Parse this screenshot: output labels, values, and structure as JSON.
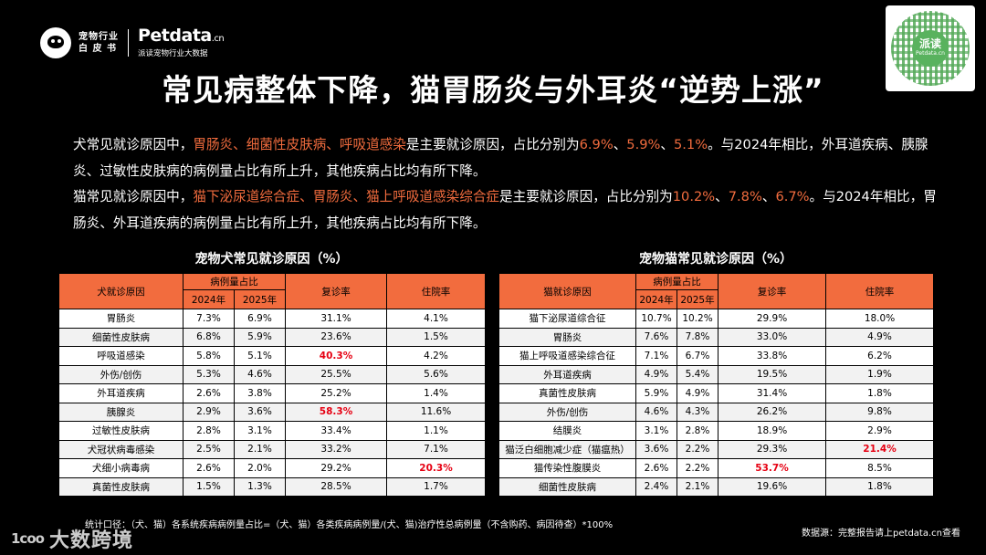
{
  "header": {
    "logo_line1": "宠物行业",
    "logo_line2": "白 皮 书",
    "brand": "Petdata",
    "brand_suffix": ".cn",
    "brand_sub": "派读宠物行业大数据"
  },
  "qr": {
    "center_text": "派读",
    "center_sub": "Petdata.cn"
  },
  "title": "常见病整体下降，猫胃肠炎与外耳炎“逆势上涨”",
  "para1": {
    "t1": "犬常见就诊原因中，",
    "h1": "胃肠炎、细菌性皮肤病、呼吸道感染",
    "t2": "是主要就诊原因，占比分别为",
    "h2": "6.9%",
    "t3": "、",
    "h3": "5.9%",
    "t4": "、",
    "h4": "5.1%",
    "t5": "。与2024年相比，外耳道疾病、胰腺炎、过敏性皮肤病的病例量占比有所上升，其他疾病占比均有所下降。"
  },
  "para2": {
    "t1": "猫常见就诊原因中，",
    "h1": "猫下泌尿道综合症、胃肠炎、猫上呼吸道感染综合症",
    "t2": "是主要就诊原因，占比分别为",
    "h2": "10.2%",
    "t3": "、",
    "h3": "7.8%",
    "t4": "、",
    "h4": "6.7%",
    "t5": "。与2024年相比，胃肠炎、外耳道疾病的病例量占比有所上升，其他疾病占比均有所下降。"
  },
  "dog_table": {
    "title": "宠物犬常见就诊原因（%）",
    "headers": {
      "reason": "犬就诊原因",
      "share": "病例量占比",
      "y2024": "2024年",
      "y2025": "2025年",
      "revisit": "复诊率",
      "hospital": "住院率"
    },
    "rows": [
      {
        "name": "胃肠炎",
        "y2024": "7.3%",
        "y2025": "6.9%",
        "revisit": "31.1%",
        "hospital": "4.1%",
        "red": ""
      },
      {
        "name": "细菌性皮肤病",
        "y2024": "6.8%",
        "y2025": "5.9%",
        "revisit": "23.6%",
        "hospital": "1.5%",
        "red": ""
      },
      {
        "name": "呼吸道感染",
        "y2024": "5.8%",
        "y2025": "5.1%",
        "revisit": "40.3%",
        "hospital": "4.2%",
        "red": "revisit"
      },
      {
        "name": "外伤/创伤",
        "y2024": "5.3%",
        "y2025": "4.6%",
        "revisit": "25.5%",
        "hospital": "5.6%",
        "red": ""
      },
      {
        "name": "外耳道疾病",
        "y2024": "2.6%",
        "y2025": "3.8%",
        "revisit": "25.2%",
        "hospital": "1.4%",
        "red": ""
      },
      {
        "name": "胰腺炎",
        "y2024": "2.9%",
        "y2025": "3.6%",
        "revisit": "58.3%",
        "hospital": "11.6%",
        "red": "revisit"
      },
      {
        "name": "过敏性皮肤病",
        "y2024": "2.8%",
        "y2025": "3.1%",
        "revisit": "33.4%",
        "hospital": "1.1%",
        "red": ""
      },
      {
        "name": "犬冠状病毒感染",
        "y2024": "2.5%",
        "y2025": "2.1%",
        "revisit": "33.2%",
        "hospital": "7.1%",
        "red": ""
      },
      {
        "name": "犬细小病毒病",
        "y2024": "2.6%",
        "y2025": "2.0%",
        "revisit": "29.2%",
        "hospital": "20.3%",
        "red": "hospital"
      },
      {
        "name": "真菌性皮肤病",
        "y2024": "1.5%",
        "y2025": "1.3%",
        "revisit": "28.5%",
        "hospital": "1.7%",
        "red": ""
      }
    ]
  },
  "cat_table": {
    "title": "宠物猫常见就诊原因（%）",
    "headers": {
      "reason": "猫就诊原因",
      "share": "病例量占比",
      "y2024": "2024年",
      "y2025": "2025年",
      "revisit": "复诊率",
      "hospital": "住院率"
    },
    "rows": [
      {
        "name": "猫下泌尿道综合征",
        "y2024": "10.7%",
        "y2025": "10.2%",
        "revisit": "29.9%",
        "hospital": "18.0%",
        "red": ""
      },
      {
        "name": "胃肠炎",
        "y2024": "7.6%",
        "y2025": "7.8%",
        "revisit": "33.0%",
        "hospital": "4.9%",
        "red": ""
      },
      {
        "name": "猫上呼吸道感染综合征",
        "y2024": "7.1%",
        "y2025": "6.7%",
        "revisit": "33.8%",
        "hospital": "6.2%",
        "red": ""
      },
      {
        "name": "外耳道疾病",
        "y2024": "4.9%",
        "y2025": "5.4%",
        "revisit": "19.5%",
        "hospital": "1.9%",
        "red": ""
      },
      {
        "name": "真菌性皮肤病",
        "y2024": "5.9%",
        "y2025": "4.9%",
        "revisit": "31.4%",
        "hospital": "1.8%",
        "red": ""
      },
      {
        "name": "外伤/创伤",
        "y2024": "4.6%",
        "y2025": "4.3%",
        "revisit": "26.2%",
        "hospital": "9.8%",
        "red": ""
      },
      {
        "name": "结膜炎",
        "y2024": "3.1%",
        "y2025": "2.8%",
        "revisit": "18.9%",
        "hospital": "2.9%",
        "red": ""
      },
      {
        "name": "猫泛白细胞减少症（猫瘟热）",
        "y2024": "3.6%",
        "y2025": "2.2%",
        "revisit": "29.3%",
        "hospital": "21.4%",
        "red": "hospital"
      },
      {
        "name": "猫传染性腹膜炎",
        "y2024": "2.6%",
        "y2025": "2.2%",
        "revisit": "53.7%",
        "hospital": "8.5%",
        "red": "revisit"
      },
      {
        "name": "细菌性皮肤病",
        "y2024": "2.4%",
        "y2025": "2.1%",
        "revisit": "19.6%",
        "hospital": "1.8%",
        "red": ""
      }
    ]
  },
  "footer": {
    "note": "统计口径：（犬、猫）各系统疾病病例量占比=（犬、猫）各类疾病病例量/(犬、猫)治疗性总病例量（不含购药、病因待查）*100%",
    "source": "数据源：完整报告请上petdata.cn查看",
    "watermark_mark": "1ᴄoo",
    "watermark_text": "大数跨境"
  },
  "colors": {
    "accent": "#f26c3e",
    "highlight_red": "#e60012",
    "background": "#000000"
  }
}
